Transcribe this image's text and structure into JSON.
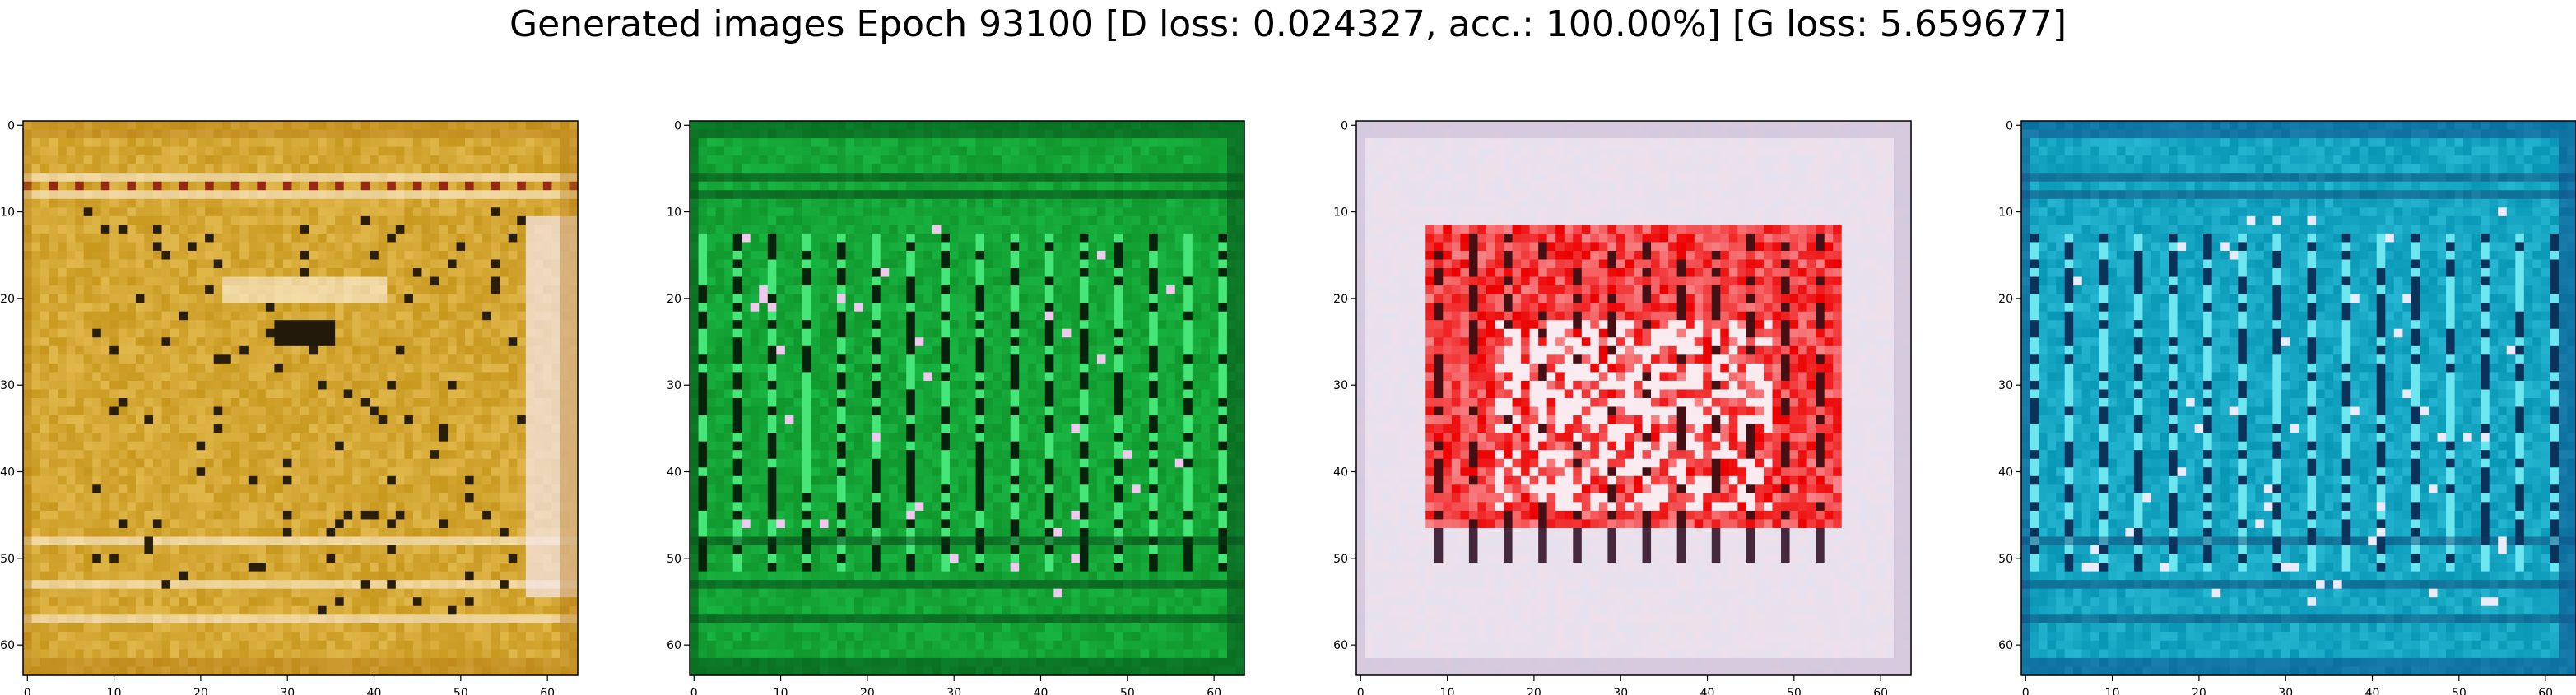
{
  "figure": {
    "title": "Generated images Epoch 93100 [D loss: 0.024327, acc.: 100.00%] [G loss: 5.659677]"
  },
  "chart_data": [
    {
      "type": "heatmap",
      "palette": "gold",
      "base_color": "#c8981e",
      "xlim": [
        -0.5,
        63.5
      ],
      "ylim": [
        63.5,
        -0.5
      ],
      "xticks": [
        0,
        10,
        20,
        30,
        40,
        50,
        60
      ],
      "yticks": [
        0,
        10,
        20,
        30,
        40,
        50,
        60
      ],
      "xtick_labels": [
        "0",
        "10",
        "20",
        "30",
        "40",
        "50",
        "60"
      ],
      "ytick_labels": [
        "0",
        "10",
        "20",
        "30",
        "40",
        "50",
        "60"
      ]
    },
    {
      "type": "heatmap",
      "palette": "green",
      "base_color": "#10962c",
      "xlim": [
        -0.5,
        63.5
      ],
      "ylim": [
        63.5,
        -0.5
      ],
      "xticks": [
        0,
        10,
        20,
        30,
        40,
        50,
        60
      ],
      "yticks": [
        0,
        10,
        20,
        30,
        40,
        50,
        60
      ],
      "xtick_labels": [
        "0",
        "10",
        "20",
        "30",
        "40",
        "50",
        "60"
      ],
      "ytick_labels": [
        "0",
        "10",
        "20",
        "30",
        "40",
        "50",
        "60"
      ]
    },
    {
      "type": "heatmap",
      "palette": "pinkred",
      "base_color": "#f0e0ea",
      "accent_color": "#ee1010",
      "xlim": [
        -0.5,
        63.5
      ],
      "ylim": [
        63.5,
        -0.5
      ],
      "xticks": [
        0,
        10,
        20,
        30,
        40,
        50,
        60
      ],
      "yticks": [
        0,
        10,
        20,
        30,
        40,
        50,
        60
      ],
      "xtick_labels": [
        "0",
        "10",
        "20",
        "30",
        "40",
        "50",
        "60"
      ],
      "ytick_labels": [
        "0",
        "10",
        "20",
        "30",
        "40",
        "50",
        "60"
      ]
    },
    {
      "type": "heatmap",
      "palette": "cyan",
      "base_color": "#0a9ab8",
      "xlim": [
        -0.5,
        63.5
      ],
      "ylim": [
        63.5,
        -0.5
      ],
      "xticks": [
        0,
        10,
        20,
        30,
        40,
        50,
        60
      ],
      "yticks": [
        0,
        10,
        20,
        30,
        40,
        50,
        60
      ],
      "xtick_labels": [
        "0",
        "10",
        "20",
        "30",
        "40",
        "50",
        "60"
      ],
      "ytick_labels": [
        "0",
        "10",
        "20",
        "30",
        "40",
        "50",
        "60"
      ]
    }
  ]
}
